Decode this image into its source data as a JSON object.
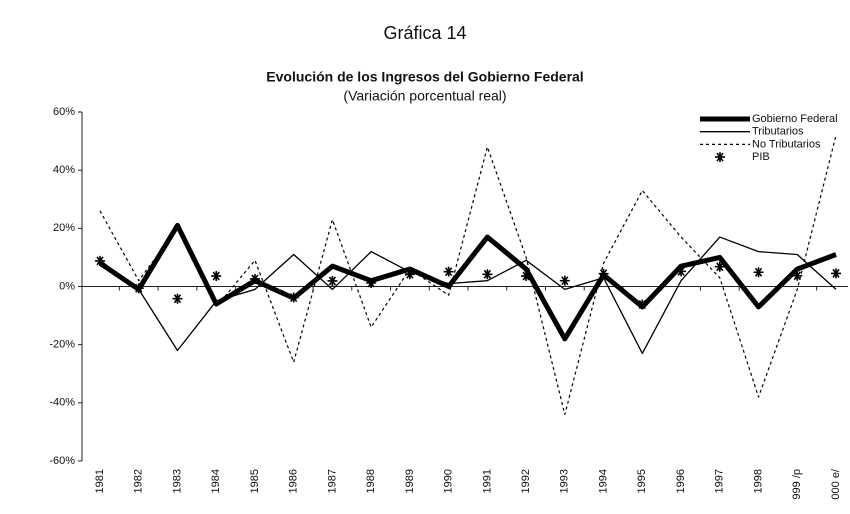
{
  "chart_data": {
    "type": "line",
    "heading": "Gráfica 14",
    "title": "Evolución de los Ingresos del Gobierno Federal",
    "subtitle": "(Variación porcentual real)",
    "categories": [
      "1981",
      "1982",
      "1983",
      "1984",
      "1985",
      "1986",
      "1987",
      "1988",
      "1989",
      "1990",
      "1991",
      "1992",
      "1993",
      "1994",
      "1995",
      "1996",
      "1997",
      "1998",
      "999 /p",
      "000 e/"
    ],
    "ylim": [
      -60,
      60
    ],
    "yticks": [
      {
        "value": 60,
        "label": "60%"
      },
      {
        "value": 40,
        "label": "40%"
      },
      {
        "value": 20,
        "label": "20%"
      },
      {
        "value": 0,
        "label": "0%"
      },
      {
        "value": -20,
        "label": "-20%"
      },
      {
        "value": -40,
        "label": "-40%"
      },
      {
        "value": -60,
        "label": "-60%"
      }
    ],
    "legend": "top-right",
    "series": [
      {
        "name": "Gobierno Federal",
        "color": "#000000",
        "style": "thick",
        "values": [
          8,
          -1,
          21,
          -6,
          2,
          -4,
          7,
          2,
          6,
          0,
          17,
          6,
          -18,
          4,
          -7,
          7,
          10,
          -7,
          6,
          11
        ]
      },
      {
        "name": "Tributarios",
        "color": "#000000",
        "style": "thin",
        "values": [
          9,
          -1,
          -22,
          -5,
          -1,
          11,
          -1,
          12,
          5,
          1,
          2,
          9,
          -1,
          3,
          -23,
          2,
          17,
          12,
          11,
          -1
        ]
      },
      {
        "name": "No Tributarios",
        "color": "#000000",
        "style": "dotted",
        "values": [
          26,
          2,
          20,
          -7,
          9,
          -26,
          23,
          -14,
          6,
          -3,
          48,
          10,
          -44,
          8,
          33,
          17,
          3,
          -38,
          -1,
          52
        ]
      },
      {
        "name": "PIB",
        "color": "#000000",
        "style": "marker",
        "values": [
          8.8,
          -0.6,
          -4.2,
          3.6,
          2.6,
          -3.8,
          1.9,
          1.2,
          4.2,
          5.1,
          4.2,
          3.6,
          2,
          4.4,
          -6.2,
          5.2,
          6.8,
          4.9,
          3.7,
          4.5
        ]
      }
    ]
  }
}
